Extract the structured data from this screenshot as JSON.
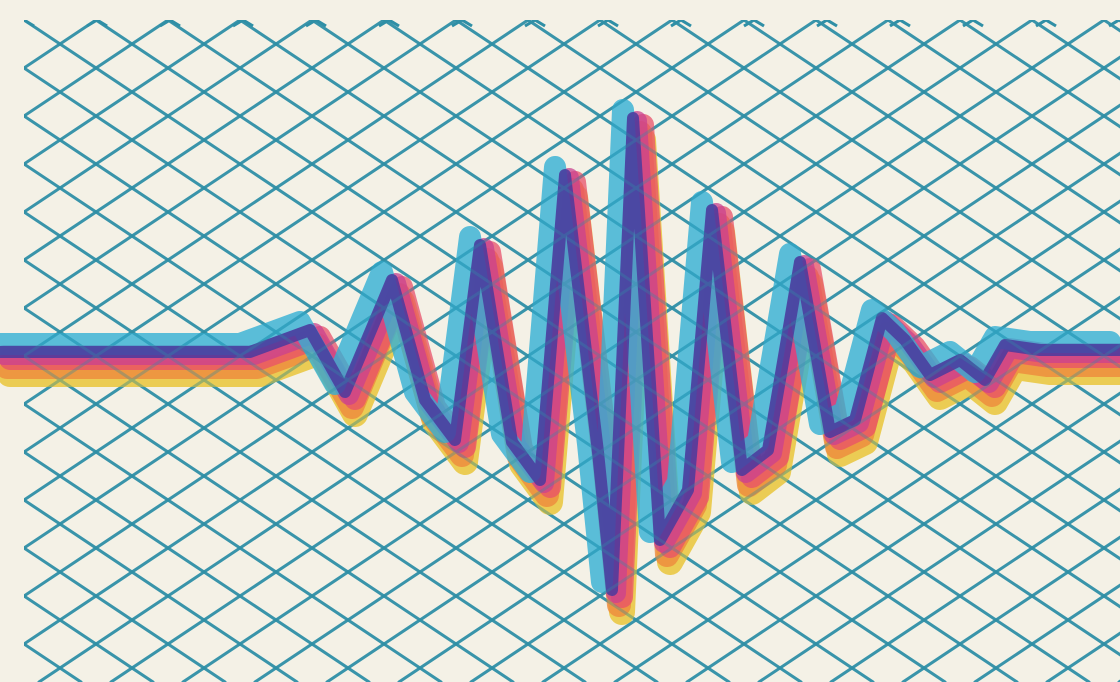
{
  "colors": {
    "paper": "#f4f1e6",
    "grid": "#2f8fa6",
    "wave_yellow": "#e9c53a",
    "wave_orange": "#ee8a3c",
    "wave_red": "#e8506a",
    "wave_magenta": "#c9418f",
    "wave_cyan": "#33b0d4",
    "wave_purple": "#4a3a9e"
  },
  "artwork": {
    "subject": "waveform-over-diamond-mesh",
    "layers": [
      {
        "name": "yellow",
        "color_key": "wave_yellow"
      },
      {
        "name": "orange",
        "color_key": "wave_orange"
      },
      {
        "name": "red",
        "color_key": "wave_red"
      },
      {
        "name": "magenta",
        "color_key": "wave_magenta"
      },
      {
        "name": "cyan",
        "color_key": "wave_cyan"
      },
      {
        "name": "purple",
        "color_key": "wave_purple"
      }
    ]
  }
}
